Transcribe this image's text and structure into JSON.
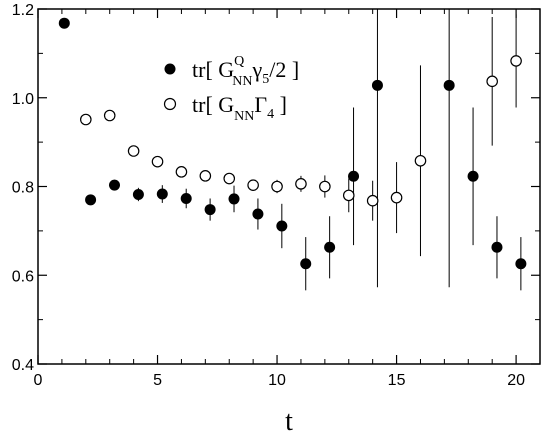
{
  "chart_data": {
    "type": "scatter",
    "xlabel": "t",
    "ylabel": "",
    "xlim": [
      0,
      21
    ],
    "ylim": [
      0.4,
      1.2
    ],
    "x_ticks": [
      0,
      5,
      10,
      15,
      20
    ],
    "x_tick_labels": [
      "0",
      "5",
      "10",
      "15",
      "20"
    ],
    "y_ticks": [
      0.4,
      0.6,
      0.8,
      1.0,
      1.2
    ],
    "y_tick_labels": [
      "0.4",
      "0.6",
      "0.8",
      "1.0",
      "1.2"
    ],
    "grid": false,
    "legend_position": "top-center",
    "legend": {
      "series1": {
        "prefix": "tr[ G",
        "sup": "Q",
        "sub": "NN",
        "mid": "γ",
        "sub2": "5",
        "suffix": "/2 ]"
      },
      "series2": {
        "prefix": "tr[ G",
        "sub": "NN",
        "mid": "Γ",
        "sub2": "4",
        "suffix": " ]"
      }
    },
    "series": [
      {
        "marker": "filled-circle",
        "points": [
          {
            "x": 1.1,
            "y": 1.168,
            "err": 0.0
          },
          {
            "x": 2.2,
            "y": 0.77,
            "err": 0.0
          },
          {
            "x": 3.2,
            "y": 0.803,
            "err": 0.012
          },
          {
            "x": 4.2,
            "y": 0.782,
            "err": 0.015
          },
          {
            "x": 5.2,
            "y": 0.783,
            "err": 0.02
          },
          {
            "x": 6.2,
            "y": 0.773,
            "err": 0.022
          },
          {
            "x": 7.2,
            "y": 0.748,
            "err": 0.025
          },
          {
            "x": 8.2,
            "y": 0.772,
            "err": 0.03
          },
          {
            "x": 9.2,
            "y": 0.738,
            "err": 0.035
          },
          {
            "x": 10.2,
            "y": 0.711,
            "err": 0.05
          },
          {
            "x": 11.2,
            "y": 0.626,
            "err": 0.06
          },
          {
            "x": 12.2,
            "y": 0.663,
            "err": 0.07
          },
          {
            "x": 13.2,
            "y": 0.823,
            "err": 0.155
          },
          {
            "x": 14.2,
            "y": 1.028,
            "err": 0.455
          },
          {
            "x": 17.2,
            "y": 1.028,
            "err": 0.455
          },
          {
            "x": 18.2,
            "y": 0.823,
            "err": 0.155
          },
          {
            "x": 19.2,
            "y": 0.663,
            "err": 0.07
          },
          {
            "x": 20.2,
            "y": 0.626,
            "err": 0.06
          }
        ]
      },
      {
        "marker": "open-circle",
        "points": [
          {
            "x": 2.0,
            "y": 0.951,
            "err": 0.006
          },
          {
            "x": 3.0,
            "y": 0.96,
            "err": 0.006
          },
          {
            "x": 4.0,
            "y": 0.88,
            "err": 0.006
          },
          {
            "x": 5.0,
            "y": 0.856,
            "err": 0.007
          },
          {
            "x": 6.0,
            "y": 0.833,
            "err": 0.007
          },
          {
            "x": 7.0,
            "y": 0.824,
            "err": 0.008
          },
          {
            "x": 8.0,
            "y": 0.818,
            "err": 0.01
          },
          {
            "x": 9.0,
            "y": 0.803,
            "err": 0.012
          },
          {
            "x": 10.0,
            "y": 0.8,
            "err": 0.015
          },
          {
            "x": 11.0,
            "y": 0.806,
            "err": 0.018
          },
          {
            "x": 12.0,
            "y": 0.8,
            "err": 0.025
          },
          {
            "x": 13.0,
            "y": 0.78,
            "err": 0.038
          },
          {
            "x": 14.0,
            "y": 0.768,
            "err": 0.045
          },
          {
            "x": 15.0,
            "y": 0.775,
            "err": 0.08
          },
          {
            "x": 16.0,
            "y": 0.858,
            "err": 0.215
          },
          {
            "x": 19.0,
            "y": 1.037,
            "err": 0.145
          },
          {
            "x": 20.0,
            "y": 1.083,
            "err": 0.105
          }
        ]
      }
    ]
  }
}
